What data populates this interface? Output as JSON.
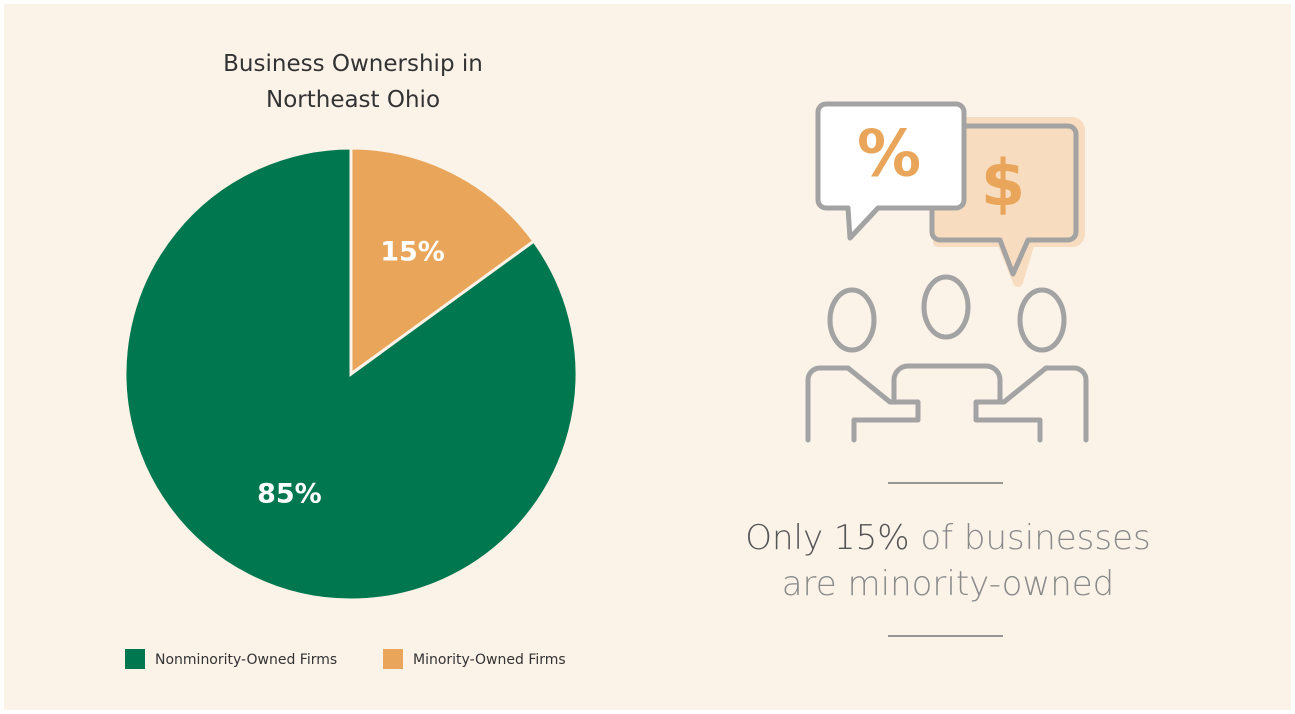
{
  "chart_data": {
    "type": "pie",
    "title": "Business Ownership in Northeast Ohio",
    "categories": [
      "Nonminority-Owned Firms",
      "Minority-Owned Firms"
    ],
    "values": [
      85,
      15
    ],
    "value_labels": [
      "85%",
      "15%"
    ],
    "colors": [
      "#00774f",
      "#e9a65a"
    ]
  },
  "callout": {
    "highlight": "Only 15%",
    "text": "of businesses are minority-owned"
  }
}
